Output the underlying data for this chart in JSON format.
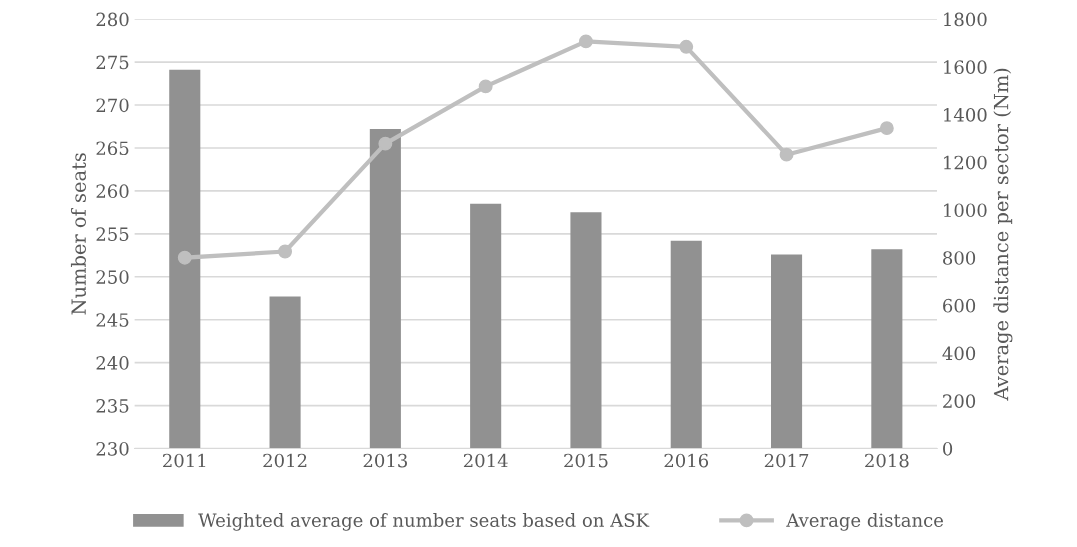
{
  "chart_data": {
    "type": "bar",
    "ylabel": "Number of seats",
    "y2label": "Average distance per sector (Nm)",
    "categories": [
      "2011",
      "2012",
      "2013",
      "2014",
      "2015",
      "2016",
      "2017",
      "2018"
    ],
    "series": [
      {
        "name": "Weighted average of number seats based on ASK",
        "color": "#919191",
        "values": [
          274.1,
          247.7,
          267.2,
          258.5,
          257.5,
          254.2,
          252.6,
          253.2
        ]
      },
      {
        "name": "Average distance",
        "type": "line",
        "axis": "y2",
        "color": "#bfbfbf",
        "marker": "circle",
        "values": [
          800,
          826,
          1278,
          1518,
          1707,
          1684,
          1232,
          1343
        ]
      }
    ],
    "ylim": [
      230,
      280
    ],
    "yticks": [
      230,
      235,
      240,
      245,
      250,
      255,
      260,
      265,
      270,
      275,
      280
    ],
    "y2lim": [
      0,
      1800
    ],
    "y2ticks": [
      0,
      200,
      400,
      600,
      800,
      1000,
      1200,
      1400,
      1600,
      1800
    ],
    "grid": "y",
    "legend": "bottom"
  }
}
